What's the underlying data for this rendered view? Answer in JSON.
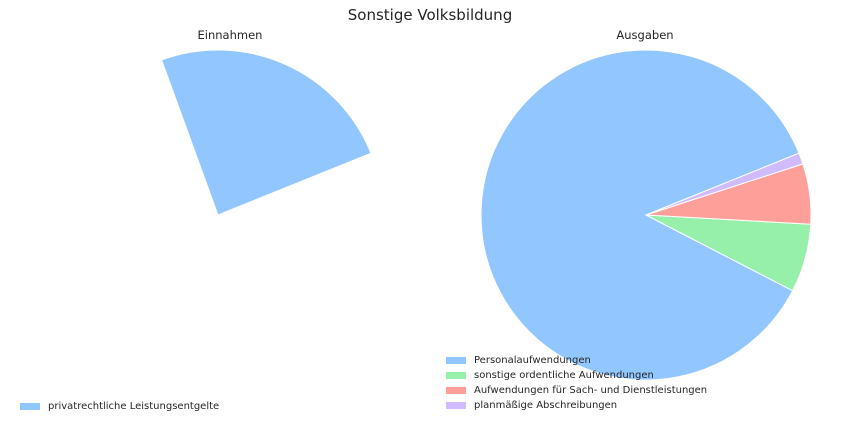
{
  "chart_data": [
    {
      "type": "pie",
      "suptitle": "Sonstige Volksbildung",
      "title": "Einnahmen",
      "categories": [
        "privatrechtliche Leistungsentgelte"
      ],
      "values": [
        1
      ],
      "colors": [
        "#92c6ff"
      ],
      "startangle_deg": 110,
      "counterclock": false,
      "render": "partial-wedge",
      "visible_sweep_deg": 88,
      "legend_position": "lower-left"
    },
    {
      "type": "pie",
      "title": "Ausgaben",
      "categories": [
        "Personalaufwendungen",
        "sonstige ordentliche Aufwendungen",
        "Aufwendungen für Sach- und Dienstleistungen",
        "planmäßige Abschreibungen"
      ],
      "values": [
        86.3,
        6.7,
        5.9,
        1.1
      ],
      "colors": [
        "#92c6ff",
        "#97f0aa",
        "#ff9f9a",
        "#d0bbff"
      ],
      "startangle_deg": 22,
      "counterclock": true,
      "legend_position": "lower-center"
    }
  ]
}
